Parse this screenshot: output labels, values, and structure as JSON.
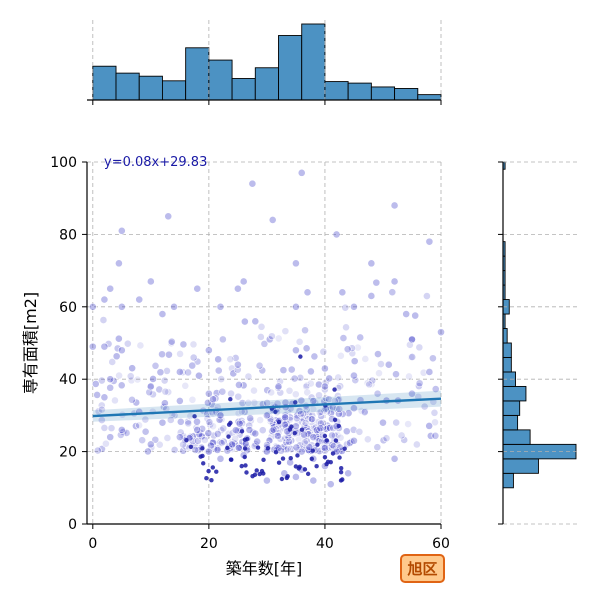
{
  "chart_data": {
    "type": "scatter",
    "xlabel": "築年数[年]",
    "ylabel": "専有面積[m2]",
    "xlim": [
      -1,
      60
    ],
    "ylim": [
      0,
      100
    ],
    "x_ticks": [
      0,
      20,
      40,
      60
    ],
    "y_ticks": [
      0,
      20,
      40,
      60,
      80,
      100
    ],
    "x_tick_labels": [
      "0",
      "20",
      "40",
      "60"
    ],
    "y_tick_labels": [
      "0",
      "20",
      "40",
      "60",
      "80",
      "100"
    ],
    "grid": true,
    "regression": {
      "equation": "y=0.08x+29.83",
      "slope": 0.08,
      "intercept": 29.83,
      "color": "#1f77b4"
    },
    "badge": "旭区",
    "colors": {
      "point": "#3f3fc8",
      "hist": "#4c92c3",
      "hist_edge": "#000000",
      "grid": "#b0b0b0"
    },
    "marginal_x_hist": {
      "bin_edges": [
        0,
        4,
        8,
        12,
        16,
        20,
        24,
        28,
        32,
        36,
        40,
        44,
        48,
        52,
        56,
        60
      ],
      "counts": [
        44,
        35,
        31,
        25,
        68,
        52,
        28,
        42,
        84,
        99,
        24,
        22,
        17,
        15,
        7
      ]
    },
    "marginal_y_hist": {
      "bin_edges": [
        10,
        14,
        18,
        22,
        26,
        30,
        34,
        38,
        42,
        46,
        50,
        54,
        58,
        62,
        66,
        70,
        74,
        78,
        82,
        86,
        90,
        94,
        98,
        100
      ],
      "counts": [
        5,
        17,
        35,
        13,
        7,
        8,
        11,
        6,
        4,
        4,
        2,
        1,
        3,
        1,
        1,
        1,
        1,
        0,
        0,
        0,
        0,
        0,
        1
      ]
    },
    "highlighted_points": [
      [
        27.5,
        94
      ],
      [
        36,
        97
      ],
      [
        52,
        88
      ],
      [
        31,
        84
      ],
      [
        13,
        85
      ],
      [
        5,
        81
      ],
      [
        42,
        80
      ],
      [
        58,
        78
      ],
      [
        48,
        72
      ],
      [
        35,
        72
      ],
      [
        4.5,
        72
      ],
      [
        10,
        67
      ],
      [
        26,
        67
      ],
      [
        52,
        67
      ],
      [
        3,
        65
      ],
      [
        18,
        65
      ],
      [
        25,
        65
      ],
      [
        37,
        64
      ],
      [
        43,
        64
      ],
      [
        48,
        63
      ],
      [
        2,
        62
      ],
      [
        8,
        62
      ],
      [
        0,
        60
      ],
      [
        5,
        60
      ],
      [
        14,
        60
      ],
      [
        22,
        60
      ],
      [
        35,
        60
      ],
      [
        45,
        60
      ],
      [
        54,
        58
      ],
      [
        12,
        58
      ],
      [
        28,
        56
      ],
      [
        0,
        49
      ],
      [
        2,
        49
      ],
      [
        60,
        53
      ],
      [
        55,
        51
      ],
      [
        5,
        48
      ],
      [
        20,
        48
      ],
      [
        35,
        48
      ],
      [
        51,
        44
      ],
      [
        25,
        44
      ],
      [
        15,
        42
      ],
      [
        3,
        40
      ],
      [
        45,
        41
      ],
      [
        58,
        42
      ],
      [
        10,
        38
      ],
      [
        32,
        38
      ],
      [
        40,
        38
      ],
      [
        20,
        36
      ],
      [
        2,
        35
      ],
      [
        55,
        36
      ],
      [
        15,
        34
      ],
      [
        38,
        34
      ],
      [
        45,
        32
      ],
      [
        8,
        31
      ],
      [
        30,
        30
      ],
      [
        22,
        30
      ],
      [
        50,
        28
      ],
      [
        12,
        28
      ],
      [
        35,
        27
      ],
      [
        42,
        27
      ],
      [
        5,
        26
      ],
      [
        18,
        26
      ],
      [
        28,
        25
      ],
      [
        38,
        24
      ],
      [
        3,
        24
      ],
      [
        15,
        24
      ],
      [
        45,
        23
      ],
      [
        52,
        18
      ],
      [
        24,
        22
      ],
      [
        10,
        22
      ],
      [
        32,
        21
      ],
      [
        40,
        21
      ],
      [
        20,
        20
      ],
      [
        30,
        20
      ],
      [
        36,
        20
      ],
      [
        42,
        20
      ],
      [
        26,
        19
      ],
      [
        38,
        18
      ],
      [
        34,
        17
      ],
      [
        40,
        16
      ],
      [
        36,
        15
      ],
      [
        33,
        14
      ],
      [
        30,
        12
      ],
      [
        38,
        12
      ],
      [
        41,
        11
      ],
      [
        35,
        13
      ],
      [
        44,
        14
      ],
      [
        22,
        18
      ]
    ]
  }
}
